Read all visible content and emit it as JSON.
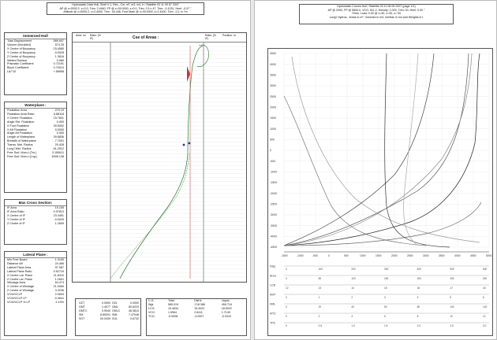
{
  "left": {
    "header_lines": [
      "Hydrostatic Data Hull, Shell V.1, Res., Cm, m², m3, m4, b / Stabilite 03 11 09 57 2007",
      "AP @ x=0000.2, z=0.0, Trim: 2.4460, FP @ x=39.0000, z=0.0, Trim: 2.5 x 47, Trim: -0.1031, Heel: -0.07 °",
      "Attitude @ x=0000.2, z=2.4000, Trim : 00.446, Foot Mark @ x=39.0000, z=2.4000, Trim: -0.1 m ?m"
    ],
    "immersed_hull": {
      "title": "Immersed Hull",
      "rows": [
        [
          "Total Displacement",
          "589.607"
        ],
        [
          "Volume (Moulded)",
          "574.25"
        ],
        [
          "X Centre of Buoyancy",
          "15.4580"
        ],
        [
          "Y Centre of Buoyancy",
          "-0.0028"
        ],
        [
          "Z Centre of Buoyancy",
          "1.3616"
        ],
        [
          "Wetted Surface",
          "0.080"
        ],
        [
          "Prismatic Coefficient",
          "0.72191"
        ],
        [
          "Block Coefficient",
          "0.70013"
        ],
        [
          "LA/°10",
          "+.58958"
        ]
      ]
    },
    "waterplane": {
      "title": "Waterplane :",
      "rows": [
        [
          "Floatation Area",
          "270.19"
        ],
        [
          "Floatation Area Ratio",
          "0.88118"
        ],
        [
          "X Centre Floatation",
          "15.7831"
        ],
        [
          "Angle Rot. Floatation",
          "0.000"
        ],
        [
          "X Foot Floatation",
          "39.5002"
        ],
        [
          "X Aft Floatation",
          "0.0000"
        ],
        [
          "Angle Aft Floatation",
          "0.000"
        ],
        [
          "Length of Waterplane",
          "39.8836"
        ],
        [
          "Breadth of Waterplane",
          "7.7001"
        ],
        [
          "Transv. Met. Radius",
          "20.428"
        ],
        [
          "Long'l Met. Radius",
          "61.2512"
        ],
        [
          "Free Surf. Mom.t (Trs.)",
          "3.150611"
        ],
        [
          "Free Surf. Mom.t (Lng.)",
          "6306.138"
        ]
      ]
    },
    "max_cross_section": {
      "title": "Max Cross Section:",
      "rows": [
        [
          "IF Area",
          "15.155"
        ],
        [
          "IF Area Ratio",
          "0.97813"
        ],
        [
          "X Centre of IF",
          "23.4451"
        ],
        [
          "Y Centre of IF",
          "-0.0025"
        ],
        [
          "Z Centre of IF",
          "1.2609"
        ]
      ]
    },
    "lateral_plane": {
      "title": "Lateral Plane :",
      "rows": [
        [
          "Min Free Board",
          "1.3165"
        ],
        [
          "Distance Aft",
          "24.466"
        ],
        [
          "Lateral Plane Area",
          "97.087"
        ],
        [
          "Lateral Plane Ratio",
          "0.52719"
        ],
        [
          "X Centre Lat. Plane",
          "21.8310"
        ],
        [
          "Z Centre Lat. Plane",
          "1.2691"
        ],
        [
          "Windage Area",
          "64.474"
        ],
        [
          "X Centre of Windage",
          "21.0069"
        ],
        [
          "Z Centre of Windage",
          "3.3236"
        ],
        [
          "VCW/VCLP",
          "2.0604"
        ],
        [
          "VCW/VCLP LP",
          "-0.4641"
        ],
        [
          "VCW/VCLP % LP",
          "-1.19%"
        ]
      ]
    },
    "area_curve": {
      "title": "Cse of Areas :",
      "col1_head": "Area: m²",
      "col2_head": "Ratio: (% IF)",
      "col3_head": "Ratio: (% IF)",
      "col4_head": "Position: m"
    },
    "stability": {
      "rows": [
        [
          "GZT",
          "0.0000",
          "GZL",
          "0.0000"
        ],
        [
          "GMT",
          "1.4077",
          "GML",
          "80.6223"
        ],
        [
          "GMTC",
          "0.9040",
          "GMLC",
          "46.3810"
        ],
        [
          "SM",
          "8.89201",
          "SML",
          "7.47048"
        ],
        [
          "SGT",
          "00.0439",
          "SGL",
          "0.6732"
        ]
      ]
    },
    "centres": {
      "headers": [
        "C.G.:",
        "Total:",
        "Dist'd:",
        "Liquid:"
      ],
      "rows": [
        [
          "Wgt",
          "589.019",
          "1'18.386",
          "459.718"
        ],
        [
          "LCG:",
          "15.4634",
          "15.4022",
          "18.5022"
        ],
        [
          "VCG:",
          "1.5964",
          "2.6411",
          "1.7149"
        ],
        [
          "TCG:",
          "-0.0008",
          "-0.0007",
          "-0.0310"
        ]
      ]
    }
  },
  "right": {
    "header_lines": [
      "Hydrostatic Curves Hull / Stabilite 03 11 08 05 2007 (page 1/1)",
      "AP @ 2000, FP @ 5500.0, VCG: 511.2, Density: 1.025, Trim: 00, Heel: 0.00 °",
      "Trims: Load: 0.00 @ x=30, z=30, z= 00",
      "Long'l Hydros., Areas in m², Volumes in m3, Inertias in m4 and Weights in t"
    ],
    "y_ticks": [
      "4500",
      "4000",
      "3500",
      "3000",
      "2500",
      "2000",
      "1500",
      "1000",
      "500",
      "0",
      "-500",
      "-1000",
      "-1500",
      "-2000",
      "-2500",
      "-3000",
      "-3500",
      "-4000",
      "-4500"
    ],
    "x_ticks": [
      "-1500",
      "-1000",
      "-500",
      "0",
      "500",
      "1000",
      "1500",
      "2000",
      "2500",
      "3000",
      "3500",
      "4000",
      "4500",
      "5000"
    ],
    "axis_rows": [
      [
        "Disp.",
        "0",
        "100",
        "200",
        "300",
        "400",
        "500",
        "600"
      ],
      [
        "Area",
        "0",
        "50",
        "100",
        "150",
        "200",
        "250",
        "300"
      ],
      [
        "LCB",
        "12",
        "13",
        "14",
        "15",
        "16",
        "17",
        "18"
      ],
      [
        "KMT",
        "0",
        "1",
        "2",
        "3",
        "4",
        "5",
        "6"
      ],
      [
        "KML",
        "0",
        "20",
        "40",
        "60",
        "80",
        "100",
        "120"
      ],
      [
        "MTC",
        "0",
        "2",
        "4",
        "6",
        "8",
        "10",
        "12"
      ],
      [
        "TPC",
        "0",
        "0.5",
        "1.0",
        "1.5",
        "2.0",
        "2.5",
        "3.0"
      ]
    ],
    "footer": "Hydrostatic Curves by Stabilite — page 1 of 1"
  }
}
